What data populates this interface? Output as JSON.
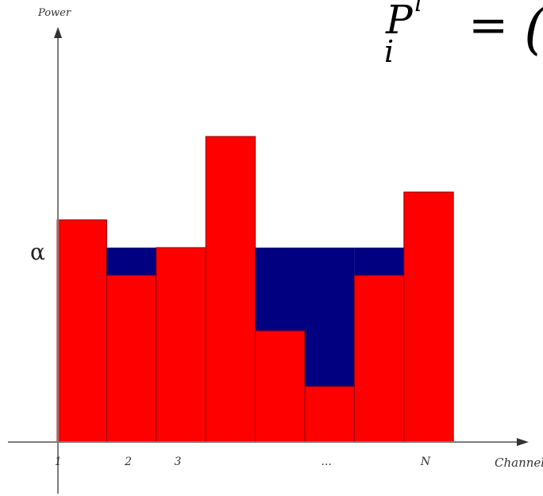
{
  "formula": {
    "base": "P",
    "sub": "i",
    "sup": "i",
    "equals": "=",
    "paren": "("
  },
  "chart_data": {
    "type": "bar",
    "y_axis_label": "Power",
    "x_axis_label": "Channel",
    "level_label": "α",
    "categories": [
      "1",
      "2",
      "3",
      "",
      "",
      "...",
      "",
      "N"
    ],
    "noise_heights": [
      80.0,
      60.0,
      70.0,
      110.0,
      40.0,
      20.0,
      60.0,
      90.0
    ],
    "water_level": 70.0,
    "ylim": [
      0,
      110
    ],
    "colors": {
      "noise": "#ff0000",
      "water": "#000080",
      "axis": "#7d7d7d"
    }
  }
}
